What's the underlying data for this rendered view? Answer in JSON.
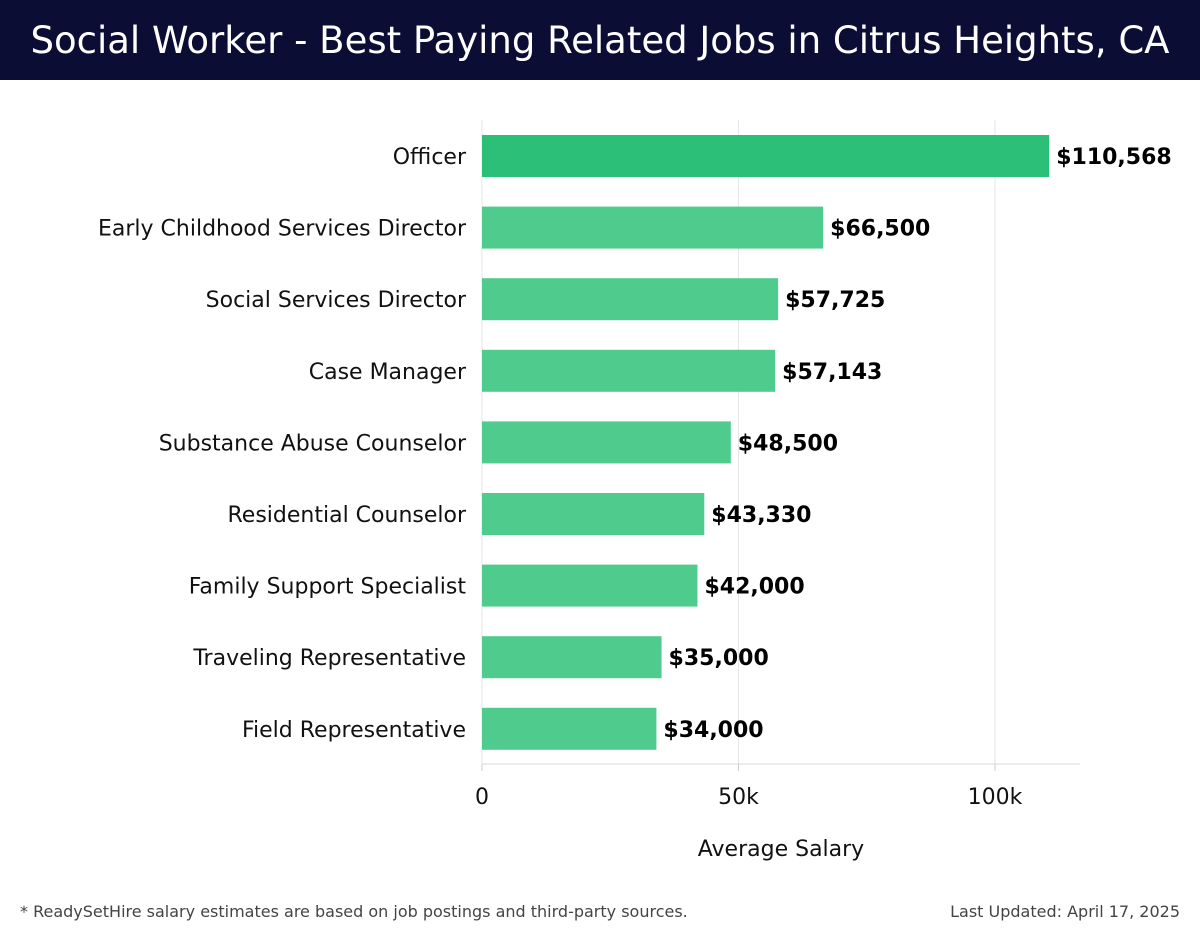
{
  "header": {
    "title": "Social Worker - Best Paying Related Jobs in Citrus Heights, CA"
  },
  "chart_data": {
    "type": "bar",
    "orientation": "horizontal",
    "categories": [
      "Officer",
      "Early Childhood Services Director",
      "Social Services Director",
      "Case Manager",
      "Substance Abuse Counselor",
      "Residential Counselor",
      "Family Support Specialist",
      "Traveling Representative",
      "Field Representative"
    ],
    "values": [
      110568,
      66500,
      57725,
      57143,
      48500,
      43330,
      42000,
      35000,
      34000
    ],
    "value_labels": [
      "$110,568",
      "$66,500",
      "$57,725",
      "$57,143",
      "$48,500",
      "$43,330",
      "$42,000",
      "$35,000",
      "$34,000"
    ],
    "xlabel": "Average Salary",
    "ylabel": "",
    "xlim": [
      0,
      116000
    ],
    "xticks": [
      0,
      50000,
      100000
    ],
    "xtick_labels": [
      "0",
      "50k",
      "100k"
    ],
    "grid": true,
    "colors": {
      "top_bar": "#2bbf77",
      "bar": "#4fcb8e"
    }
  },
  "footer": {
    "note": "* ReadySetHire salary estimates are based on job postings and third-party sources.",
    "updated": "Last Updated: April 17, 2025"
  }
}
